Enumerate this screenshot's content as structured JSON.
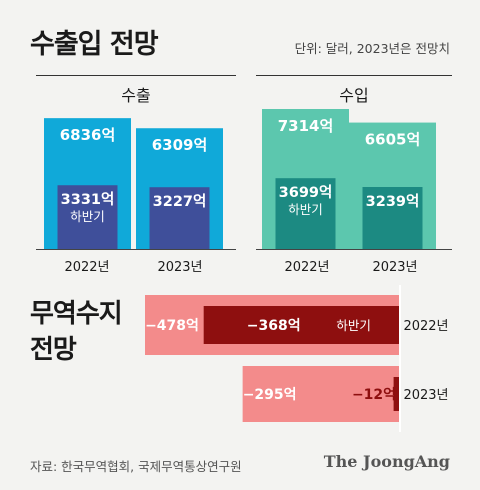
{
  "title": "수출입 전망",
  "unit_note": "단위: 달러, 2023년은 전망치",
  "balance_title_line1": "무역수지",
  "balance_title_line2": "전망",
  "source": "자료: 한국무역협회, 국제무역통상연구원",
  "brand": "The JoongAng",
  "colors": {
    "export_total": "#10a9d9",
    "export_half": "#3f4f9a",
    "import_total": "#5cc7ae",
    "import_half": "#1c8a82",
    "deficit_total": "#f38b8b",
    "deficit_half": "#8e0f0f"
  },
  "chart_data": [
    {
      "type": "bar",
      "groups": [
        {
          "name": "수출",
          "categories": [
            "2022년",
            "2023년"
          ],
          "total": {
            "values": [
              6836,
              6309
            ],
            "labels": [
              "6836억",
              "6309억"
            ]
          },
          "half": {
            "values": [
              3331,
              3227
            ],
            "labels": [
              "3331억",
              "3227억"
            ],
            "sublabel": "하반기"
          }
        },
        {
          "name": "수입",
          "categories": [
            "2022년",
            "2023년"
          ],
          "total": {
            "values": [
              7314,
              6605
            ],
            "labels": [
              "7314억",
              "6605억"
            ]
          },
          "half": {
            "values": [
              3699,
              3239
            ],
            "labels": [
              "3699억",
              "3239억"
            ],
            "sublabel": "하반기"
          }
        }
      ]
    },
    {
      "type": "bar",
      "orientation": "horizontal",
      "categories": [
        "2022년",
        "2023년"
      ],
      "total": {
        "values": [
          -478,
          -295
        ],
        "labels": [
          "−478억",
          "−295억"
        ]
      },
      "half": {
        "values": [
          -368,
          -12
        ],
        "labels": [
          "−368억",
          "−12억"
        ],
        "sublabel": "하반기"
      }
    }
  ]
}
